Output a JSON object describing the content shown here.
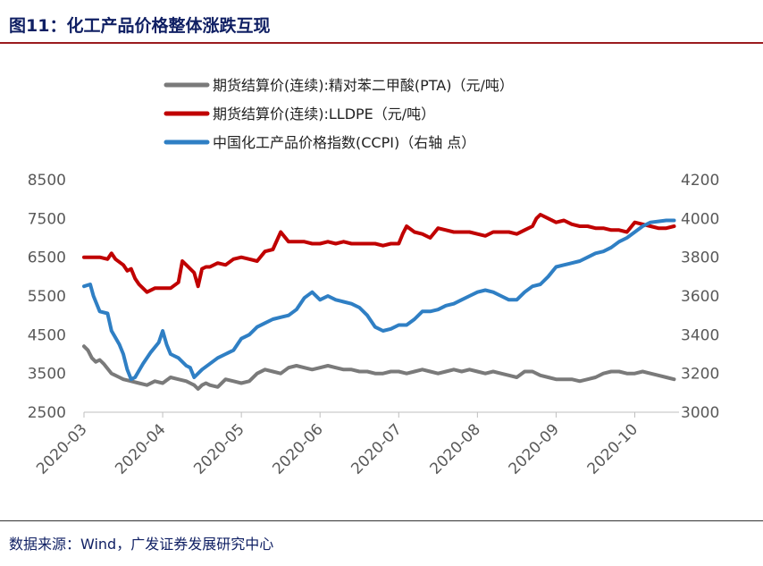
{
  "header": {
    "title": "图11：化工产品价格整体涨跌互现"
  },
  "footer": {
    "source": "数据来源：Wind，广发证券发展研究中心"
  },
  "colors": {
    "pta": "#7a7a7a",
    "lldpe": "#c00000",
    "ccpi": "#2f7fc4",
    "axis": "#595959"
  },
  "chart_data": {
    "type": "line",
    "title": "图11：化工产品价格整体涨跌互现",
    "x_ticks": [
      "2020-03",
      "2020-04",
      "2020-05",
      "2020-06",
      "2020-07",
      "2020-08",
      "2020-09",
      "2020-10"
    ],
    "x_range": [
      0,
      7.55
    ],
    "y_left": {
      "ticks": [
        8500,
        7500,
        6500,
        5500,
        4500,
        3500,
        2500
      ],
      "range": [
        2500,
        8500
      ]
    },
    "y_right": {
      "ticks": [
        4200,
        4000,
        3800,
        3600,
        3400,
        3200,
        3000
      ],
      "range": [
        3000,
        4200
      ]
    },
    "series": [
      {
        "name": "期货结算价(连续):精对苯二甲酸(PTA)（元/吨）",
        "axis": "left",
        "color_key": "pta",
        "x": [
          0,
          0.05,
          0.1,
          0.15,
          0.2,
          0.25,
          0.35,
          0.45,
          0.5,
          0.6,
          0.7,
          0.8,
          0.9,
          1.0,
          1.1,
          1.2,
          1.3,
          1.35,
          1.4,
          1.45,
          1.5,
          1.55,
          1.6,
          1.7,
          1.8,
          1.9,
          2.0,
          2.1,
          2.2,
          2.3,
          2.4,
          2.5,
          2.6,
          2.7,
          2.8,
          2.9,
          3.0,
          3.1,
          3.2,
          3.3,
          3.4,
          3.5,
          3.6,
          3.7,
          3.8,
          3.9,
          4.0,
          4.1,
          4.2,
          4.3,
          4.4,
          4.5,
          4.6,
          4.7,
          4.8,
          4.9,
          5.0,
          5.1,
          5.2,
          5.3,
          5.4,
          5.5,
          5.6,
          5.7,
          5.8,
          5.9,
          6.0,
          6.1,
          6.2,
          6.3,
          6.4,
          6.5,
          6.6,
          6.7,
          6.8,
          6.9,
          7.0,
          7.1,
          7.2,
          7.3,
          7.4,
          7.5
        ],
        "values": [
          4200,
          4100,
          3900,
          3800,
          3850,
          3750,
          3500,
          3400,
          3350,
          3300,
          3250,
          3200,
          3300,
          3250,
          3400,
          3350,
          3300,
          3250,
          3200,
          3100,
          3200,
          3250,
          3200,
          3150,
          3350,
          3300,
          3250,
          3300,
          3500,
          3600,
          3550,
          3500,
          3650,
          3700,
          3650,
          3600,
          3650,
          3700,
          3650,
          3600,
          3600,
          3550,
          3550,
          3500,
          3500,
          3550,
          3550,
          3500,
          3550,
          3600,
          3550,
          3500,
          3550,
          3600,
          3550,
          3600,
          3550,
          3500,
          3550,
          3500,
          3450,
          3400,
          3550,
          3550,
          3450,
          3400,
          3350,
          3350,
          3350,
          3300,
          3350,
          3400,
          3500,
          3550,
          3550,
          3500,
          3500,
          3550,
          3500,
          3450,
          3400,
          3350
        ]
      },
      {
        "name": "期货结算价(连续):LLDPE（元/吨）",
        "axis": "left",
        "color_key": "lldpe",
        "x": [
          0,
          0.1,
          0.2,
          0.3,
          0.35,
          0.4,
          0.5,
          0.55,
          0.6,
          0.65,
          0.7,
          0.8,
          0.9,
          1.0,
          1.1,
          1.2,
          1.25,
          1.3,
          1.4,
          1.45,
          1.5,
          1.55,
          1.6,
          1.7,
          1.8,
          1.9,
          2.0,
          2.1,
          2.2,
          2.3,
          2.4,
          2.5,
          2.6,
          2.7,
          2.75,
          2.8,
          2.9,
          3.0,
          3.1,
          3.2,
          3.3,
          3.4,
          3.5,
          3.6,
          3.7,
          3.8,
          3.9,
          4.0,
          4.05,
          4.1,
          4.2,
          4.3,
          4.4,
          4.5,
          4.6,
          4.7,
          4.8,
          4.9,
          5.0,
          5.1,
          5.2,
          5.3,
          5.4,
          5.5,
          5.6,
          5.7,
          5.75,
          5.8,
          5.9,
          6.0,
          6.1,
          6.2,
          6.3,
          6.4,
          6.5,
          6.6,
          6.7,
          6.8,
          6.9,
          7.0,
          7.1,
          7.2,
          7.3,
          7.4,
          7.5
        ],
        "values": [
          6500,
          6500,
          6500,
          6450,
          6600,
          6450,
          6300,
          6150,
          6200,
          5950,
          5800,
          5600,
          5700,
          5700,
          5700,
          5850,
          6400,
          6300,
          6100,
          5750,
          6200,
          6250,
          6250,
          6350,
          6300,
          6450,
          6500,
          6450,
          6400,
          6650,
          6700,
          7150,
          6900,
          6900,
          6900,
          6900,
          6850,
          6850,
          6900,
          6850,
          6900,
          6850,
          6850,
          6850,
          6850,
          6800,
          6850,
          6850,
          7100,
          7300,
          7150,
          7100,
          7000,
          7250,
          7200,
          7150,
          7150,
          7150,
          7100,
          7050,
          7150,
          7150,
          7150,
          7100,
          7200,
          7300,
          7500,
          7600,
          7500,
          7400,
          7450,
          7350,
          7300,
          7300,
          7250,
          7250,
          7200,
          7200,
          7150,
          7400,
          7350,
          7300,
          7250,
          7250,
          7300
        ]
      },
      {
        "name": "中国化工产品价格指数(CCPI)（右轴 点）",
        "axis": "right",
        "color_key": "ccpi",
        "x": [
          0,
          0.08,
          0.12,
          0.2,
          0.3,
          0.35,
          0.45,
          0.5,
          0.55,
          0.6,
          0.65,
          0.75,
          0.85,
          0.95,
          1.0,
          1.05,
          1.1,
          1.2,
          1.3,
          1.35,
          1.4,
          1.5,
          1.6,
          1.7,
          1.8,
          1.9,
          2.0,
          2.1,
          2.2,
          2.3,
          2.4,
          2.5,
          2.6,
          2.7,
          2.8,
          2.9,
          3.0,
          3.1,
          3.2,
          3.3,
          3.4,
          3.5,
          3.6,
          3.7,
          3.8,
          3.9,
          4.0,
          4.1,
          4.2,
          4.3,
          4.4,
          4.5,
          4.6,
          4.7,
          4.8,
          4.9,
          5.0,
          5.1,
          5.2,
          5.3,
          5.4,
          5.5,
          5.6,
          5.7,
          5.8,
          5.9,
          6.0,
          6.1,
          6.2,
          6.3,
          6.4,
          6.5,
          6.6,
          6.7,
          6.8,
          6.9,
          7.0,
          7.1,
          7.2,
          7.3,
          7.4,
          7.5
        ],
        "values": [
          3650,
          3660,
          3600,
          3520,
          3510,
          3420,
          3350,
          3300,
          3220,
          3170,
          3180,
          3250,
          3310,
          3360,
          3420,
          3350,
          3300,
          3280,
          3240,
          3230,
          3180,
          3220,
          3250,
          3280,
          3300,
          3320,
          3380,
          3400,
          3440,
          3460,
          3480,
          3490,
          3500,
          3530,
          3590,
          3620,
          3580,
          3600,
          3580,
          3570,
          3560,
          3540,
          3500,
          3440,
          3420,
          3430,
          3450,
          3450,
          3480,
          3520,
          3520,
          3530,
          3550,
          3560,
          3580,
          3600,
          3620,
          3630,
          3620,
          3600,
          3580,
          3580,
          3620,
          3650,
          3660,
          3700,
          3750,
          3760,
          3770,
          3780,
          3800,
          3820,
          3830,
          3850,
          3880,
          3900,
          3930,
          3960,
          3980,
          3985,
          3990,
          3990
        ]
      }
    ]
  }
}
